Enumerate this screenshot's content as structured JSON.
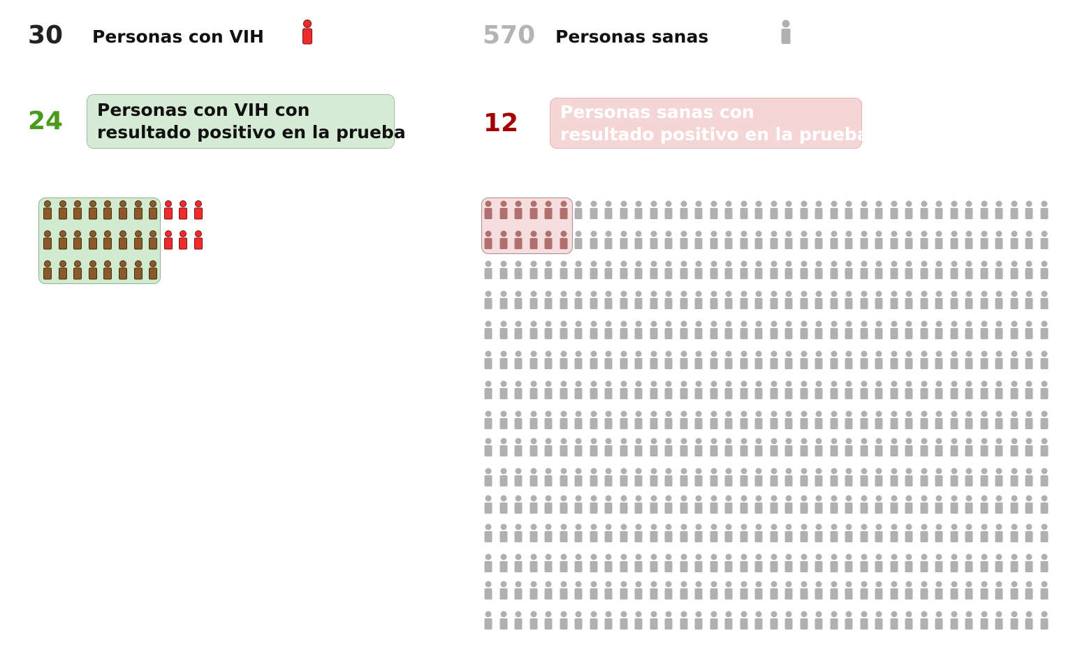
{
  "sick": {
    "count": "30",
    "label": "Personas con VIH",
    "color": "#ee2c2c",
    "icon": "person-icon-red"
  },
  "healthy": {
    "count": "570",
    "label": "Personas sanas",
    "color": "#b0b0b0",
    "icon": "person-icon-gray"
  },
  "true_positive": {
    "count": "24",
    "label_line1": "Personas con VIH con",
    "label_line2": "resultado positivo en la prueba",
    "count_color": "#4a9a1e",
    "icon_color": "#8b5a2b"
  },
  "false_positive": {
    "count": "12",
    "label_line1": "Personas sanas con",
    "label_line2": "resultado positivo en la prueba",
    "count_color": "#a50000",
    "icon_color": "#b07070"
  },
  "chart_data": {
    "type": "pictogram",
    "groups": [
      {
        "name": "Personas con VIH",
        "total": 30,
        "test_positive": 24
      },
      {
        "name": "Personas sanas",
        "total": 570,
        "test_positive": 12
      }
    ]
  }
}
